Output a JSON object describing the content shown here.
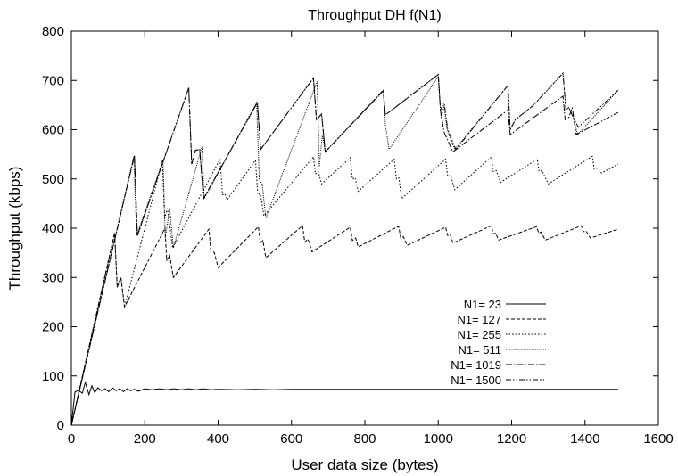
{
  "chart_data": {
    "type": "line",
    "title": "Throughput DH f(N1)",
    "xlabel": "User data size (bytes)",
    "ylabel": "Throughput (kbps)",
    "xlim": [
      0,
      1600
    ],
    "ylim": [
      0,
      800
    ],
    "xticks": [
      0,
      200,
      400,
      600,
      800,
      1000,
      1200,
      1400,
      1600
    ],
    "yticks": [
      0,
      100,
      200,
      300,
      400,
      500,
      600,
      700,
      800
    ],
    "grid": false,
    "legend_position": "right",
    "series": [
      {
        "name": "N1=  23",
        "style": "solid",
        "points": [
          [
            0,
            0
          ],
          [
            10,
            68
          ],
          [
            20,
            70
          ],
          [
            30,
            65
          ],
          [
            38,
            87
          ],
          [
            48,
            62
          ],
          [
            56,
            80
          ],
          [
            64,
            66
          ],
          [
            72,
            76
          ],
          [
            82,
            70
          ],
          [
            92,
            74
          ],
          [
            102,
            68
          ],
          [
            112,
            76
          ],
          [
            122,
            70
          ],
          [
            132,
            74
          ],
          [
            142,
            68
          ],
          [
            152,
            74
          ],
          [
            162,
            70
          ],
          [
            172,
            73
          ],
          [
            182,
            69
          ],
          [
            200,
            74
          ],
          [
            220,
            72
          ],
          [
            240,
            74
          ],
          [
            260,
            72
          ],
          [
            280,
            74
          ],
          [
            300,
            72
          ],
          [
            320,
            74
          ],
          [
            340,
            72
          ],
          [
            360,
            74
          ],
          [
            380,
            72
          ],
          [
            400,
            73
          ],
          [
            450,
            72
          ],
          [
            500,
            73
          ],
          [
            550,
            72
          ],
          [
            600,
            73
          ],
          [
            700,
            73
          ],
          [
            800,
            73
          ],
          [
            900,
            73
          ],
          [
            1000,
            73
          ],
          [
            1100,
            73
          ],
          [
            1200,
            73
          ],
          [
            1300,
            73
          ],
          [
            1400,
            73
          ],
          [
            1490,
            73
          ]
        ]
      },
      {
        "name": "N1= 127",
        "style": "dashed",
        "points": [
          [
            0,
            0
          ],
          [
            118,
            390
          ],
          [
            125,
            280
          ],
          [
            135,
            300
          ],
          [
            145,
            240
          ],
          [
            255,
            400
          ],
          [
            260,
            335
          ],
          [
            268,
            345
          ],
          [
            278,
            300
          ],
          [
            375,
            398
          ],
          [
            380,
            355
          ],
          [
            390,
            350
          ],
          [
            400,
            320
          ],
          [
            510,
            403
          ],
          [
            515,
            370
          ],
          [
            522,
            375
          ],
          [
            530,
            340
          ],
          [
            630,
            405
          ],
          [
            636,
            372
          ],
          [
            645,
            378
          ],
          [
            656,
            352
          ],
          [
            760,
            402
          ],
          [
            766,
            375
          ],
          [
            775,
            380
          ],
          [
            782,
            362
          ],
          [
            892,
            404
          ],
          [
            898,
            380
          ],
          [
            905,
            383
          ],
          [
            915,
            365
          ],
          [
            1020,
            402
          ],
          [
            1026,
            385
          ],
          [
            1033,
            387
          ],
          [
            1040,
            370
          ],
          [
            1145,
            405
          ],
          [
            1150,
            388
          ],
          [
            1156,
            390
          ],
          [
            1165,
            376
          ],
          [
            1268,
            403
          ],
          [
            1274,
            390
          ],
          [
            1280,
            392
          ],
          [
            1292,
            376
          ],
          [
            1390,
            405
          ],
          [
            1395,
            393
          ],
          [
            1403,
            394
          ],
          [
            1415,
            380
          ],
          [
            1490,
            398
          ]
        ]
      },
      {
        "name": "N1= 255",
        "style": "dotted",
        "points": [
          [
            0,
            0
          ],
          [
            118,
            390
          ],
          [
            125,
            280
          ],
          [
            135,
            300
          ],
          [
            145,
            240
          ],
          [
            248,
            538
          ],
          [
            254,
            420
          ],
          [
            262,
            440
          ],
          [
            276,
            360
          ],
          [
            405,
            540
          ],
          [
            412,
            468
          ],
          [
            418,
            470
          ],
          [
            425,
            458
          ],
          [
            502,
            538
          ],
          [
            508,
            468
          ],
          [
            515,
            470
          ],
          [
            525,
            425
          ],
          [
            660,
            545
          ],
          [
            665,
            510
          ],
          [
            673,
            515
          ],
          [
            682,
            490
          ],
          [
            760,
            543
          ],
          [
            766,
            500
          ],
          [
            773,
            503
          ],
          [
            782,
            475
          ],
          [
            880,
            540
          ],
          [
            886,
            500
          ],
          [
            893,
            502
          ],
          [
            900,
            460
          ],
          [
            1020,
            540
          ],
          [
            1026,
            505
          ],
          [
            1034,
            507
          ],
          [
            1045,
            478
          ],
          [
            1145,
            545
          ],
          [
            1150,
            515
          ],
          [
            1158,
            517
          ],
          [
            1170,
            493
          ],
          [
            1270,
            540
          ],
          [
            1275,
            515
          ],
          [
            1283,
            517
          ],
          [
            1300,
            490
          ],
          [
            1420,
            546
          ],
          [
            1425,
            520
          ],
          [
            1432,
            522
          ],
          [
            1445,
            512
          ],
          [
            1490,
            530
          ]
        ]
      },
      {
        "name": "N1= 511",
        "style": "dense-dotted",
        "points": [
          [
            0,
            0
          ],
          [
            170,
            545
          ],
          [
            178,
            385
          ],
          [
            250,
            538
          ],
          [
            256,
            380
          ],
          [
            268,
            440
          ],
          [
            278,
            360
          ],
          [
            356,
            565
          ],
          [
            362,
            460
          ],
          [
            505,
            655
          ],
          [
            512,
            500
          ],
          [
            520,
            490
          ],
          [
            530,
            420
          ],
          [
            670,
            698
          ],
          [
            676,
            525
          ],
          [
            684,
            590
          ],
          [
            692,
            555
          ],
          [
            850,
            678
          ],
          [
            856,
            610
          ],
          [
            866,
            560
          ],
          [
            1000,
            708
          ],
          [
            1008,
            620
          ],
          [
            1016,
            650
          ],
          [
            1024,
            600
          ],
          [
            1045,
            560
          ],
          [
            1190,
            690
          ],
          [
            1196,
            600
          ],
          [
            1210,
            620
          ],
          [
            1260,
            650
          ],
          [
            1340,
            715
          ],
          [
            1348,
            640
          ],
          [
            1356,
            645
          ],
          [
            1368,
            625
          ],
          [
            1380,
            590
          ],
          [
            1490,
            680
          ]
        ]
      },
      {
        "name": "N1= 1019",
        "style": "dash-dot",
        "points": [
          [
            0,
            0
          ],
          [
            172,
            548
          ],
          [
            180,
            385
          ],
          [
            320,
            685
          ],
          [
            328,
            530
          ],
          [
            338,
            558
          ],
          [
            350,
            560
          ],
          [
            360,
            460
          ],
          [
            507,
            655
          ],
          [
            516,
            560
          ],
          [
            660,
            705
          ],
          [
            668,
            620
          ],
          [
            682,
            632
          ],
          [
            692,
            555
          ],
          [
            850,
            680
          ],
          [
            856,
            630
          ],
          [
            1000,
            712
          ],
          [
            1006,
            640
          ],
          [
            1016,
            595
          ],
          [
            1040,
            555
          ],
          [
            1190,
            640
          ],
          [
            1196,
            590
          ],
          [
            1340,
            668
          ],
          [
            1346,
            620
          ],
          [
            1356,
            625
          ],
          [
            1365,
            645
          ],
          [
            1376,
            590
          ],
          [
            1490,
            635
          ]
        ]
      },
      {
        "name": "N1= 1500",
        "style": "dash-dot-dot",
        "points": [
          [
            0,
            0
          ],
          [
            172,
            548
          ],
          [
            180,
            385
          ],
          [
            320,
            685
          ],
          [
            328,
            530
          ],
          [
            338,
            558
          ],
          [
            350,
            560
          ],
          [
            360,
            460
          ],
          [
            507,
            655
          ],
          [
            516,
            560
          ],
          [
            660,
            705
          ],
          [
            668,
            620
          ],
          [
            682,
            632
          ],
          [
            692,
            555
          ],
          [
            850,
            680
          ],
          [
            856,
            630
          ],
          [
            1000,
            712
          ],
          [
            1006,
            640
          ],
          [
            1016,
            655
          ],
          [
            1026,
            600
          ],
          [
            1048,
            560
          ],
          [
            1190,
            690
          ],
          [
            1196,
            600
          ],
          [
            1210,
            620
          ],
          [
            1260,
            650
          ],
          [
            1340,
            715
          ],
          [
            1348,
            640
          ],
          [
            1356,
            645
          ],
          [
            1368,
            625
          ],
          [
            1382,
            605
          ],
          [
            1490,
            680
          ]
        ]
      }
    ]
  }
}
